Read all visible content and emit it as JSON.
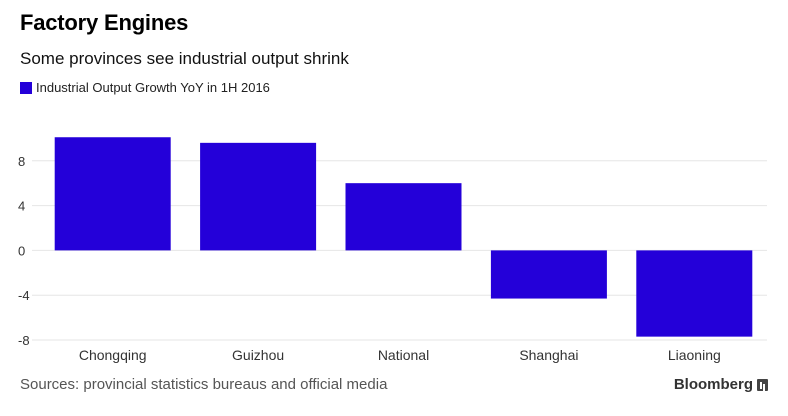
{
  "header": {
    "title": "Factory Engines",
    "subtitle": "Some provinces see industrial output shrink"
  },
  "legend": {
    "label": "Industrial Output Growth YoY in 1H 2016",
    "color": "#2400d9"
  },
  "footer": {
    "source": "Sources: provincial statistics bureaus and official media",
    "brand": "Bloomberg"
  },
  "colors": {
    "bar": "#2400d9",
    "grid": "#e6e6e6",
    "axis_text": "#333333"
  },
  "chart_data": {
    "type": "bar",
    "categories": [
      "Chongqing",
      "Guizhou",
      "National",
      "Shanghai",
      "Liaoning"
    ],
    "series": [
      {
        "name": "Industrial Output Growth YoY in 1H 2016",
        "values": [
          10.1,
          9.6,
          6.0,
          -4.3,
          -7.7
        ]
      }
    ],
    "title": "Factory Engines",
    "subtitle": "Some provinces see industrial output shrink",
    "yticks": [
      8,
      4,
      0,
      -4,
      -8
    ],
    "ylim": [
      -8,
      10.3
    ],
    "grid": true,
    "legend_position": "top-left"
  }
}
